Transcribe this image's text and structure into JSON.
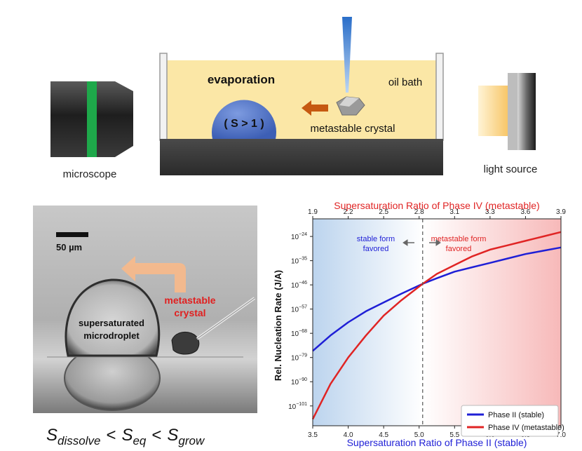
{
  "setup": {
    "evaporation_label": "evaporation",
    "droplet_label": "( S > 1 )",
    "oil_bath_label": "oil bath",
    "crystal_label": "metastable  crystal",
    "microscope_label": "microscope",
    "light_source_label": "light source",
    "colors": {
      "oil": "#fbe7a6",
      "droplet": "#4f72c4",
      "arrow": "#c65911",
      "lens_band": "#1ea84a"
    }
  },
  "photo": {
    "scale_label": "50 µm",
    "droplet_label_line1": "supersaturated",
    "droplet_label_line2": "microdroplet",
    "crystal_label_line1": "metastable",
    "crystal_label_line2": "crystal",
    "colors": {
      "crystal_label": "#e02020",
      "arrow": "#f8b98a"
    }
  },
  "formula": {
    "s1": "S",
    "s1_sub": "dissolve",
    "lt1": "<",
    "s2": "S",
    "s2_sub": "eq",
    "lt2": "<",
    "s3": "S",
    "s3_sub": "grow"
  },
  "chart_data": {
    "type": "line",
    "top_axis_title": "Supersaturation Ratio of Phase IV (metastable)",
    "bottom_axis_title": "Supersaturation Ratio of Phase II (stable)",
    "ylabel": "Rel. Nucleation Rate (J/A)",
    "x_ticks": [
      "3.5",
      "4.0",
      "4.5",
      "5.0",
      "5.5",
      "6.0",
      "6.5",
      "7.0"
    ],
    "x_range": [
      3.5,
      7.0
    ],
    "top_ticks": [
      "1.9",
      "2.2",
      "2.5",
      "2.8",
      "3.1",
      "3.3",
      "3.6",
      "3.9"
    ],
    "y_ticks": [
      {
        "base": "10",
        "exp": "−24"
      },
      {
        "base": "10",
        "exp": "−35"
      },
      {
        "base": "10",
        "exp": "−46"
      },
      {
        "base": "10",
        "exp": "−57"
      },
      {
        "base": "10",
        "exp": "−68"
      },
      {
        "base": "10",
        "exp": "−79"
      },
      {
        "base": "10",
        "exp": "−90"
      },
      {
        "base": "10",
        "exp": "−101"
      }
    ],
    "y_tick_values": [
      -24,
      -35,
      -46,
      -57,
      -68,
      -79,
      -90,
      -101
    ],
    "y_range_log10": [
      -110,
      -16
    ],
    "crossover_x": 5.05,
    "left_region_label_line1": "stable form",
    "left_region_label_line2": "favored",
    "right_region_label_line1": "metastable form",
    "right_region_label_line2": "favored",
    "series": [
      {
        "name": "Phase II (stable)",
        "color": "#1f1fd6",
        "x": [
          3.5,
          3.75,
          4.0,
          4.25,
          4.5,
          4.75,
          5.05,
          5.25,
          5.5,
          5.75,
          6.0,
          6.25,
          6.5,
          6.75,
          7.0
        ],
        "y": [
          -76,
          -69,
          -63,
          -58,
          -54,
          -50,
          -45.5,
          -43,
          -40,
          -38,
          -36,
          -34,
          -32,
          -30.5,
          -29
        ]
      },
      {
        "name": "Phase IV (metastable)",
        "color": "#e02424",
        "x": [
          3.5,
          3.75,
          4.0,
          4.25,
          4.5,
          4.75,
          5.05,
          5.25,
          5.5,
          5.75,
          6.0,
          6.25,
          6.5,
          6.75,
          7.0
        ],
        "y": [
          -107,
          -91,
          -79,
          -69,
          -60,
          -53,
          -45.5,
          -41,
          -37,
          -33,
          -30,
          -28,
          -26,
          -24,
          -22
        ]
      }
    ],
    "legend_position": "lower right"
  }
}
